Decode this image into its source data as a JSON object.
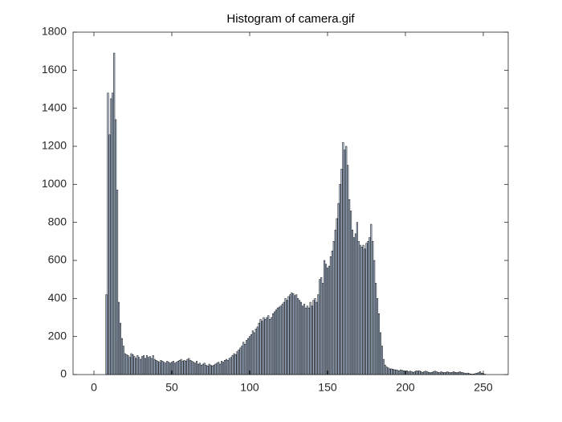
{
  "chart_data": {
    "type": "bar",
    "title": "Histogram of camera.gif",
    "x": [
      0,
      1,
      2,
      3,
      4,
      5,
      6,
      7,
      8,
      9,
      10,
      11,
      12,
      13,
      14,
      15,
      16,
      17,
      18,
      19,
      20,
      21,
      22,
      23,
      24,
      25,
      26,
      27,
      28,
      29,
      30,
      31,
      32,
      33,
      34,
      35,
      36,
      37,
      38,
      39,
      40,
      41,
      42,
      43,
      44,
      45,
      46,
      47,
      48,
      49,
      50,
      51,
      52,
      53,
      54,
      55,
      56,
      57,
      58,
      59,
      60,
      61,
      62,
      63,
      64,
      65,
      66,
      67,
      68,
      69,
      70,
      71,
      72,
      73,
      74,
      75,
      76,
      77,
      78,
      79,
      80,
      81,
      82,
      83,
      84,
      85,
      86,
      87,
      88,
      89,
      90,
      91,
      92,
      93,
      94,
      95,
      96,
      97,
      98,
      99,
      100,
      101,
      102,
      103,
      104,
      105,
      106,
      107,
      108,
      109,
      110,
      111,
      112,
      113,
      114,
      115,
      116,
      117,
      118,
      119,
      120,
      121,
      122,
      123,
      124,
      125,
      126,
      127,
      128,
      129,
      130,
      131,
      132,
      133,
      134,
      135,
      136,
      137,
      138,
      139,
      140,
      141,
      142,
      143,
      144,
      145,
      146,
      147,
      148,
      149,
      150,
      151,
      152,
      153,
      154,
      155,
      156,
      157,
      158,
      159,
      160,
      161,
      162,
      163,
      164,
      165,
      166,
      167,
      168,
      169,
      170,
      171,
      172,
      173,
      174,
      175,
      176,
      177,
      178,
      179,
      180,
      181,
      182,
      183,
      184,
      185,
      186,
      187,
      188,
      189,
      190,
      191,
      192,
      193,
      194,
      195,
      196,
      197,
      198,
      199,
      200,
      201,
      202,
      203,
      204,
      205,
      206,
      207,
      208,
      209,
      210,
      211,
      212,
      213,
      214,
      215,
      216,
      217,
      218,
      219,
      220,
      221,
      222,
      223,
      224,
      225,
      226,
      227,
      228,
      229,
      230,
      231,
      232,
      233,
      234,
      235,
      236,
      237,
      238,
      239,
      240,
      241,
      242,
      243,
      244,
      245,
      246,
      247,
      248,
      249,
      250,
      251,
      252,
      253,
      254,
      255
    ],
    "values": [
      0,
      0,
      0,
      0,
      0,
      0,
      0,
      0,
      420,
      1480,
      1260,
      1450,
      1480,
      1690,
      1340,
      970,
      380,
      270,
      190,
      150,
      110,
      105,
      100,
      90,
      110,
      105,
      95,
      85,
      100,
      90,
      80,
      95,
      100,
      85,
      100,
      90,
      95,
      85,
      100,
      80,
      75,
      70,
      65,
      75,
      70,
      65,
      60,
      70,
      65,
      60,
      65,
      70,
      60,
      65,
      70,
      75,
      80,
      70,
      75,
      70,
      80,
      85,
      75,
      70,
      65,
      60,
      70,
      55,
      60,
      50,
      55,
      60,
      50,
      45,
      55,
      50,
      45,
      50,
      55,
      60,
      65,
      55,
      70,
      65,
      75,
      80,
      75,
      85,
      90,
      100,
      110,
      105,
      120,
      130,
      140,
      150,
      170,
      160,
      180,
      190,
      200,
      210,
      230,
      220,
      240,
      250,
      270,
      290,
      280,
      300,
      290,
      300,
      310,
      290,
      300,
      320,
      330,
      340,
      350,
      355,
      360,
      370,
      380,
      400,
      390,
      410,
      420,
      430,
      425,
      415,
      420,
      400,
      390,
      380,
      360,
      370,
      350,
      360,
      350,
      380,
      360,
      390,
      400,
      380,
      420,
      500,
      510,
      480,
      600,
      580,
      560,
      570,
      620,
      650,
      700,
      760,
      820,
      900,
      1000,
      1080,
      1220,
      1180,
      1200,
      1100,
      920,
      860,
      760,
      720,
      740,
      800,
      700,
      680,
      670,
      680,
      660,
      690,
      700,
      720,
      790,
      700,
      600,
      480,
      400,
      320,
      220,
      150,
      80,
      50,
      40,
      35,
      30,
      30,
      28,
      25,
      25,
      22,
      20,
      25,
      22,
      20,
      18,
      20,
      15,
      18,
      15,
      12,
      15,
      20,
      18,
      20,
      15,
      12,
      15,
      18,
      15,
      12,
      10,
      12,
      15,
      18,
      15,
      12,
      10,
      15,
      12,
      10,
      12,
      15,
      12,
      10,
      12,
      15,
      12,
      10,
      12,
      15,
      12,
      10,
      8,
      5,
      8,
      5,
      3,
      2,
      3,
      5,
      8,
      10,
      15,
      8,
      5,
      2,
      0,
      0,
      0,
      0
    ],
    "color": "#b7c9e2",
    "xlim": [
      -13.4,
      266
    ],
    "xticks": [
      0,
      50,
      100,
      150,
      200,
      250
    ],
    "ylim": [
      0,
      1800
    ],
    "yticks": [
      0,
      200,
      400,
      600,
      800,
      1000,
      1200,
      1400,
      1600,
      1800
    ]
  }
}
